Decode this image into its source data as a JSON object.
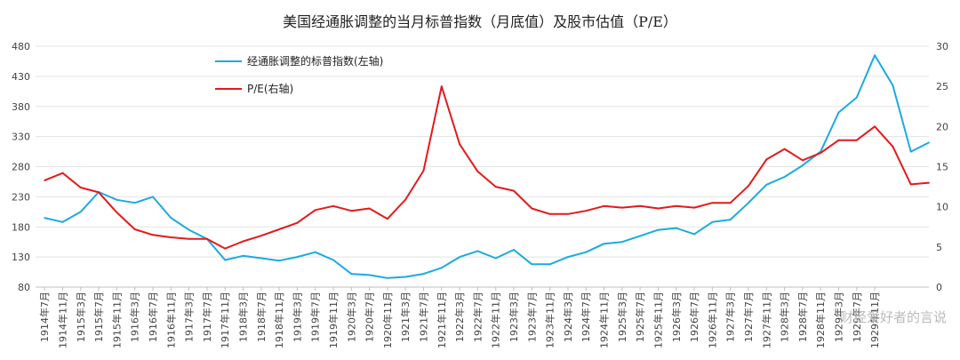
{
  "chart_data": {
    "type": "line",
    "title": "美国经通胀调整的当月标普指数（月底值）及股市估值（P/E）",
    "xlabel": "",
    "ylabel": "",
    "y2label": "",
    "ylim": [
      80,
      480
    ],
    "y2lim": [
      0,
      30
    ],
    "yticks": [
      80,
      130,
      180,
      230,
      280,
      330,
      380,
      430,
      480
    ],
    "y2ticks": [
      0,
      5,
      10,
      15,
      20,
      25,
      30
    ],
    "grid": true,
    "legend_position": "top-left",
    "x": [
      "1914年7月",
      "1914年11月",
      "1915年3月",
      "1915年7月",
      "1915年11月",
      "1916年3月",
      "1916年7月",
      "1916年11月",
      "1917年3月",
      "1917年7月",
      "1917年11月",
      "1918年3月",
      "1918年7月",
      "1918年11月",
      "1919年3月",
      "1919年7月",
      "1919年11月",
      "1920年3月",
      "1920年7月",
      "1920年11月",
      "1921年3月",
      "1921年7月",
      "1921年11月",
      "1922年3月",
      "1922年7月",
      "1922年11月",
      "1923年3月",
      "1923年7月",
      "1923年11月",
      "1924年3月",
      "1924年7月",
      "1924年11月",
      "1925年3月",
      "1925年7月",
      "1925年11月",
      "1926年3月",
      "1926年7月",
      "1926年11月",
      "1927年3月",
      "1927年7月",
      "1927年11月",
      "1928年3月",
      "1928年7月",
      "1928年11月",
      "1929年3月",
      "1929年7月",
      "1929年11月"
    ],
    "series": [
      {
        "name": "经通胀调整的标普指数(左轴)",
        "axis": "left",
        "color": "#1aabe0",
        "values": [
          195,
          188,
          205,
          238,
          225,
          220,
          230,
          195,
          175,
          160,
          125,
          132,
          128,
          124,
          130,
          138,
          125,
          102,
          100,
          95,
          97,
          102,
          112,
          130,
          140,
          128,
          142,
          118,
          118,
          130,
          138,
          152,
          155,
          165,
          175,
          178,
          168,
          188,
          192,
          220,
          250,
          263,
          282,
          305,
          370,
          395,
          465
        ]
      },
      {
        "name": "P/E(右轴)",
        "axis": "right",
        "color": "#e5191a",
        "values": [
          13.3,
          14.2,
          12.4,
          11.8,
          9.3,
          7.2,
          6.5,
          6.2,
          6.0,
          6.0,
          4.8,
          5.7,
          6.4,
          7.2,
          8.0,
          9.6,
          10.1,
          9.5,
          9.8,
          8.5,
          10.9,
          14.5,
          25.0,
          17.8,
          14.4,
          12.5,
          12.0,
          9.8,
          9.1,
          9.1,
          9.5,
          10.1,
          9.9,
          10.1,
          9.8,
          10.1,
          9.9,
          10.5,
          10.5,
          12.6,
          15.9,
          17.2,
          15.8,
          16.7,
          18.3,
          18.3,
          20.0
        ]
      }
    ],
    "tail": {
      "left_values": [
        415,
        305,
        320
      ],
      "right_values": [
        17.5,
        12.8,
        13.0
      ]
    }
  },
  "watermark": "财经爱好者的言说"
}
